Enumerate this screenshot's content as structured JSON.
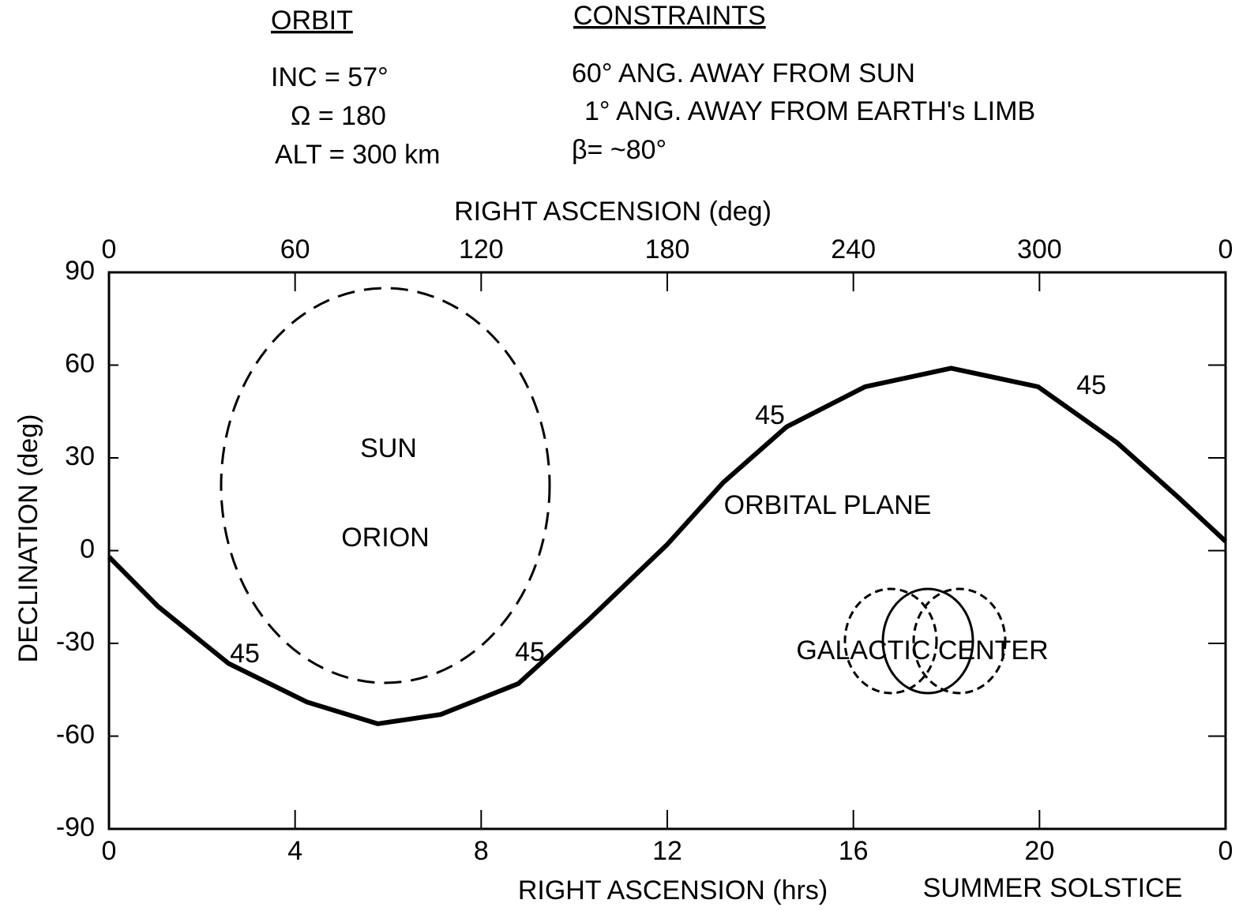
{
  "header": {
    "orbit_title": "ORBIT",
    "orbit_lines": [
      "INC = 57°",
      "Ω = 180",
      "ALT = 300 km"
    ],
    "constraints_title": "CONSTRAINTS",
    "constraint_lines": [
      "60° ANG. AWAY FROM SUN",
      "1° ANG. AWAY FROM EARTH's LIMB",
      "β= ~80°"
    ]
  },
  "chart_data": {
    "type": "line",
    "xlabel": "RIGHT ASCENSION (hrs)",
    "x2label": "RIGHT ASCENSION (deg)",
    "ylabel": "DECLINATION (deg)",
    "x": [
      0,
      1.05,
      2.57,
      4.26,
      5.78,
      7.13,
      8.8,
      10.3,
      12,
      13.2,
      14.56,
      16.25,
      18.1,
      19.97,
      21.66,
      23,
      24
    ],
    "series": [
      {
        "name": "ORBITAL PLANE",
        "color": "#000000",
        "values": [
          -2,
          -18,
          -36.5,
          -49,
          -56,
          -53,
          -43,
          -22.5,
          2,
          22,
          40,
          53,
          59,
          53,
          35,
          17,
          3
        ]
      }
    ],
    "xlim": [
      0,
      24
    ],
    "xticks": [
      0,
      4,
      8,
      12,
      16,
      20,
      {
        "value": 24,
        "label": "0"
      }
    ],
    "x2lim": [
      0,
      360
    ],
    "x2ticks": [
      0,
      60,
      120,
      180,
      240,
      300,
      {
        "value": 360,
        "label": "0"
      }
    ],
    "ylim": [
      -90,
      90
    ],
    "yticks": [
      -90,
      -60,
      -30,
      0,
      30,
      60,
      90
    ],
    "grid": false,
    "annotations": [
      "SUN",
      "ORION",
      "GALACTIC CENTER",
      "SUMMER SOLSTICE",
      "45",
      "45",
      "45",
      "45"
    ]
  }
}
